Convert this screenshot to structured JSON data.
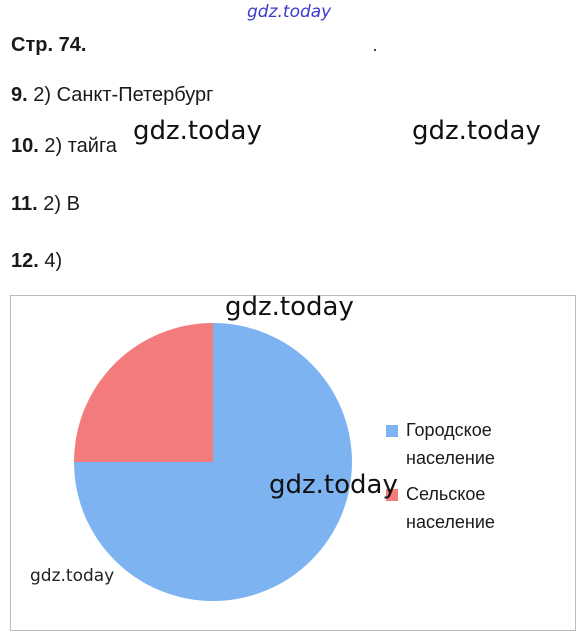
{
  "watermarks": [
    "gdz.today",
    "gdz.today",
    "gdz.today",
    "gdz.today",
    "gdz.today",
    "gdz.today"
  ],
  "heading": "Стр. 74.",
  "answers": [
    {
      "num": "9.",
      "text": "2) Санкт-Петербург"
    },
    {
      "num": "10.",
      "text": "2) тайга"
    },
    {
      "num": "11.",
      "text": "2) В"
    },
    {
      "num": "12.",
      "text": "4)"
    }
  ],
  "chart_data": {
    "type": "pie",
    "title": "",
    "start_angle_deg": 0,
    "direction": "clockwise",
    "slices": [
      {
        "label": "Городское население",
        "value": 75,
        "color": "#7eb3f2"
      },
      {
        "label": "Сельское население",
        "value": 25,
        "color": "#f47b7b"
      }
    ],
    "legend_position": "right"
  }
}
